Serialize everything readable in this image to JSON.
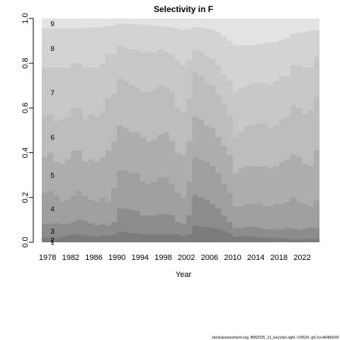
{
  "chart_data": {
    "type": "area",
    "title": "Selectivity in F",
    "xlabel": "Year",
    "ylabel": "",
    "xlim": [
      1977,
      2025
    ],
    "ylim": [
      0,
      1
    ],
    "x_ticks": [
      "1978",
      "1982",
      "1986",
      "1990",
      "1994",
      "1998",
      "2002",
      "2006",
      "2010",
      "2014",
      "2018",
      "2022"
    ],
    "y_ticks": [
      "0.0",
      "0.2",
      "0.4",
      "0.6",
      "0.8",
      "1.0"
    ],
    "age_labels": [
      "1",
      "2",
      "3",
      "4",
      "5",
      "6",
      "7",
      "8",
      "9"
    ],
    "years": [
      1977,
      1978,
      1979,
      1980,
      1981,
      1982,
      1983,
      1984,
      1985,
      1986,
      1987,
      1988,
      1989,
      1990,
      1991,
      1992,
      1993,
      1994,
      1995,
      1996,
      1997,
      1998,
      1999,
      2000,
      2001,
      2002,
      2003,
      2004,
      2005,
      2006,
      2007,
      2008,
      2009,
      2010,
      2011,
      2012,
      2013,
      2014,
      2015,
      2016,
      2017,
      2018,
      2019,
      2020,
      2021,
      2022,
      2023,
      2024
    ],
    "cumulative": [
      {
        "name": "1",
        "values": [
          0.003,
          0.003,
          0.003,
          0.003,
          0.004,
          0.004,
          0.004,
          0.004,
          0.003,
          0.003,
          0.003,
          0.003,
          0.003,
          0.004,
          0.004,
          0.004,
          0.003,
          0.003,
          0.003,
          0.003,
          0.003,
          0.003,
          0.003,
          0.003,
          0.003,
          0.003,
          0.005,
          0.005,
          0.005,
          0.005,
          0.005,
          0.004,
          0.004,
          0.004,
          0.003,
          0.003,
          0.003,
          0.003,
          0.003,
          0.003,
          0.003,
          0.003,
          0.003,
          0.003,
          0.003,
          0.003,
          0.003,
          0.003
        ]
      },
      {
        "name": "2",
        "values": [
          0.02,
          0.02,
          0.02,
          0.025,
          0.03,
          0.035,
          0.035,
          0.032,
          0.028,
          0.025,
          0.03,
          0.03,
          0.035,
          0.045,
          0.045,
          0.042,
          0.04,
          0.035,
          0.035,
          0.035,
          0.035,
          0.035,
          0.035,
          0.035,
          0.028,
          0.035,
          0.075,
          0.07,
          0.07,
          0.065,
          0.06,
          0.05,
          0.04,
          0.025,
          0.025,
          0.028,
          0.025,
          0.022,
          0.02,
          0.02,
          0.02,
          0.018,
          0.015,
          0.012,
          0.012,
          0.015,
          0.015,
          0.015
        ]
      },
      {
        "name": "3",
        "values": [
          0.08,
          0.082,
          0.085,
          0.08,
          0.082,
          0.09,
          0.1,
          0.095,
          0.085,
          0.075,
          0.08,
          0.075,
          0.09,
          0.15,
          0.15,
          0.145,
          0.14,
          0.12,
          0.12,
          0.12,
          0.125,
          0.125,
          0.12,
          0.09,
          0.08,
          0.12,
          0.21,
          0.2,
          0.19,
          0.17,
          0.15,
          0.12,
          0.09,
          0.065,
          0.065,
          0.07,
          0.068,
          0.065,
          0.06,
          0.058,
          0.06,
          0.058,
          0.065,
          0.06,
          0.055,
          0.06,
          0.065,
          0.065
        ]
      },
      {
        "name": "4",
        "values": [
          0.22,
          0.23,
          0.21,
          0.18,
          0.19,
          0.21,
          0.23,
          0.21,
          0.19,
          0.18,
          0.2,
          0.18,
          0.24,
          0.32,
          0.32,
          0.31,
          0.31,
          0.27,
          0.26,
          0.27,
          0.29,
          0.29,
          0.26,
          0.22,
          0.2,
          0.27,
          0.38,
          0.37,
          0.36,
          0.34,
          0.31,
          0.26,
          0.22,
          0.16,
          0.16,
          0.17,
          0.17,
          0.17,
          0.16,
          0.16,
          0.17,
          0.17,
          0.18,
          0.2,
          0.18,
          0.17,
          0.16,
          0.19
        ]
      },
      {
        "name": "5",
        "values": [
          0.38,
          0.4,
          0.36,
          0.35,
          0.37,
          0.41,
          0.41,
          0.36,
          0.37,
          0.36,
          0.38,
          0.41,
          0.45,
          0.52,
          0.51,
          0.49,
          0.49,
          0.47,
          0.45,
          0.46,
          0.48,
          0.49,
          0.45,
          0.4,
          0.39,
          0.45,
          0.56,
          0.55,
          0.52,
          0.51,
          0.47,
          0.43,
          0.39,
          0.31,
          0.33,
          0.34,
          0.34,
          0.34,
          0.34,
          0.33,
          0.34,
          0.36,
          0.37,
          0.39,
          0.38,
          0.35,
          0.34,
          0.41
        ]
      },
      {
        "name": "6",
        "values": [
          0.56,
          0.57,
          0.54,
          0.55,
          0.56,
          0.6,
          0.6,
          0.55,
          0.57,
          0.56,
          0.58,
          0.64,
          0.66,
          0.73,
          0.72,
          0.7,
          0.69,
          0.67,
          0.67,
          0.68,
          0.7,
          0.69,
          0.67,
          0.6,
          0.58,
          0.64,
          0.76,
          0.74,
          0.71,
          0.7,
          0.66,
          0.62,
          0.56,
          0.47,
          0.49,
          0.52,
          0.52,
          0.53,
          0.53,
          0.51,
          0.52,
          0.55,
          0.56,
          0.61,
          0.6,
          0.57,
          0.59,
          0.65
        ]
      },
      {
        "name": "7",
        "values": [
          0.78,
          0.78,
          0.78,
          0.78,
          0.78,
          0.8,
          0.8,
          0.78,
          0.78,
          0.78,
          0.8,
          0.84,
          0.84,
          0.88,
          0.87,
          0.86,
          0.86,
          0.85,
          0.85,
          0.85,
          0.86,
          0.85,
          0.84,
          0.81,
          0.79,
          0.81,
          0.86,
          0.85,
          0.83,
          0.82,
          0.79,
          0.75,
          0.72,
          0.67,
          0.69,
          0.7,
          0.71,
          0.71,
          0.71,
          0.7,
          0.72,
          0.74,
          0.74,
          0.79,
          0.79,
          0.78,
          0.78,
          0.83
        ]
      },
      {
        "name": "8",
        "values": [
          0.955,
          0.955,
          0.955,
          0.955,
          0.955,
          0.955,
          0.955,
          0.958,
          0.958,
          0.958,
          0.962,
          0.965,
          0.97,
          0.978,
          0.976,
          0.974,
          0.974,
          0.972,
          0.97,
          0.968,
          0.966,
          0.962,
          0.96,
          0.955,
          0.948,
          0.955,
          0.962,
          0.958,
          0.955,
          0.95,
          0.94,
          0.92,
          0.9,
          0.88,
          0.88,
          0.88,
          0.88,
          0.885,
          0.89,
          0.893,
          0.895,
          0.905,
          0.915,
          0.93,
          0.935,
          0.94,
          0.945,
          0.945
        ]
      },
      {
        "name": "9",
        "values": [
          1,
          1,
          1,
          1,
          1,
          1,
          1,
          1,
          1,
          1,
          1,
          1,
          1,
          1,
          1,
          1,
          1,
          1,
          1,
          1,
          1,
          1,
          1,
          1,
          1,
          1,
          1,
          1,
          1,
          1,
          1,
          1,
          1,
          1,
          1,
          1,
          1,
          1,
          1,
          1,
          1,
          1,
          1,
          1,
          1,
          1,
          1,
          1
        ]
      }
    ],
    "colors": [
      "#727272",
      "#7c7c7c",
      "#8c8c8c",
      "#9f9f9f",
      "#adadad",
      "#bcbcbc",
      "#c7c7c7",
      "#d3d3d3",
      "#e3e3e3"
    ],
    "footer": "stockassessment.org, BM2025_11_keyVarLogN, r19629, git:1cc464b606f"
  }
}
